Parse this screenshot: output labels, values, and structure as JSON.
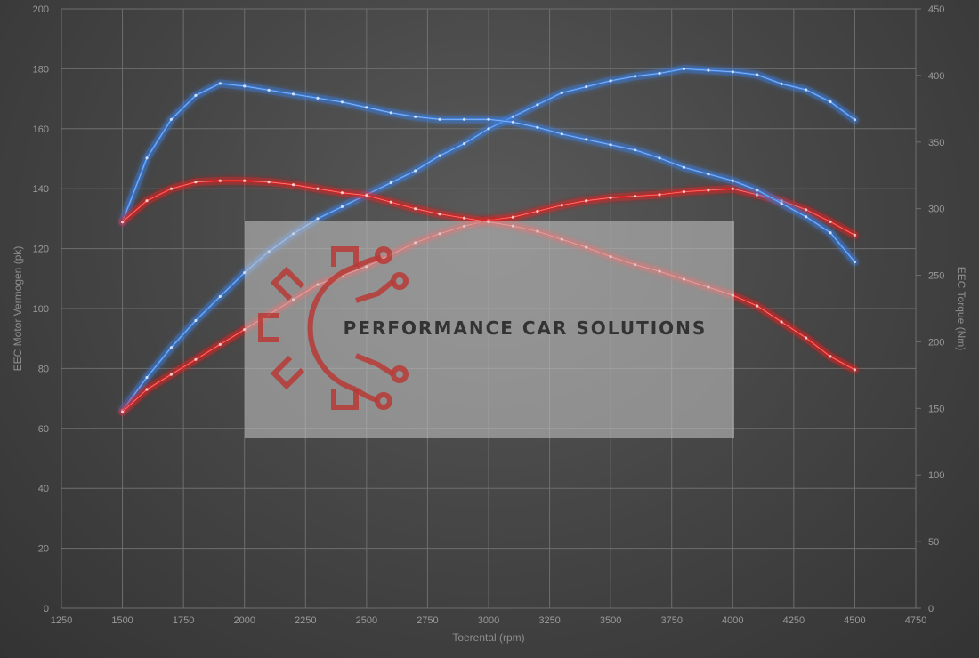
{
  "chart_data": {
    "type": "line",
    "xlabel": "Toerental (rpm)",
    "ylabel_left": "EEC Motor Vermogen (pk)",
    "ylabel_right": "EEC Torque (Nm)",
    "xlim": [
      1250,
      4750
    ],
    "ylim_left": [
      0,
      200
    ],
    "ylim_right": [
      0,
      450
    ],
    "x_ticks": [
      "1250",
      "1500",
      "1750",
      "2000",
      "2250",
      "2500",
      "2750",
      "3000",
      "3250",
      "3500",
      "3750",
      "4000",
      "4250",
      "4500",
      "4750"
    ],
    "y_ticks_left": [
      "0",
      "20",
      "40",
      "60",
      "80",
      "100",
      "120",
      "140",
      "160",
      "180",
      "200"
    ],
    "y_ticks_right": [
      "0",
      "50",
      "100",
      "150",
      "200",
      "250",
      "300",
      "350",
      "400",
      "450"
    ],
    "grid": true,
    "series": [
      {
        "axis": "left",
        "color": "#3a7fe0",
        "x": [
          1500,
          1600,
          1700,
          1800,
          1900,
          2000,
          2100,
          2200,
          2300,
          2400,
          2500,
          2600,
          2700,
          2800,
          2900,
          3000,
          3100,
          3200,
          3300,
          3400,
          3500,
          3600,
          3700,
          3800,
          3900,
          4000,
          4100,
          4200,
          4300,
          4400,
          4500
        ],
        "y": [
          66,
          77,
          87,
          96,
          104,
          112,
          119,
          125,
          130,
          134,
          138,
          142,
          146,
          151,
          155,
          160,
          164,
          168,
          172,
          174,
          176,
          177.5,
          178.5,
          180,
          179.5,
          179,
          178,
          175,
          173,
          169,
          163
        ]
      },
      {
        "axis": "left",
        "color": "#e02020",
        "x": [
          1500,
          1600,
          1700,
          1800,
          1900,
          2000,
          2100,
          2200,
          2300,
          2400,
          2500,
          2600,
          2700,
          2800,
          2900,
          3000,
          3100,
          3200,
          3300,
          3400,
          3500,
          3600,
          3700,
          3800,
          3900,
          4000,
          4100,
          4200,
          4300,
          4400,
          4500
        ],
        "y": [
          65.5,
          73,
          78,
          83,
          88,
          93,
          98,
          103,
          108,
          111,
          114,
          118,
          122,
          125,
          127.5,
          129.5,
          130.5,
          132.5,
          134.5,
          136,
          137,
          137.5,
          138,
          139,
          139.5,
          140,
          138,
          136,
          133,
          129,
          124.5
        ]
      },
      {
        "axis": "right",
        "color": "#3a7fe0",
        "x": [
          1500,
          1600,
          1700,
          1800,
          1900,
          2000,
          2100,
          2200,
          2300,
          2400,
          2500,
          2600,
          2700,
          2800,
          2900,
          3000,
          3100,
          3200,
          3300,
          3400,
          3500,
          3600,
          3700,
          3800,
          3900,
          4000,
          4100,
          4200,
          4300,
          4400,
          4500
        ],
        "y": [
          290,
          338,
          367,
          385,
          394,
          392,
          389,
          386,
          383,
          380,
          376,
          372,
          369,
          367,
          367,
          367,
          365,
          361,
          356,
          352,
          348,
          344,
          338,
          331,
          326,
          321,
          314,
          304,
          294,
          282,
          260
        ]
      },
      {
        "axis": "right",
        "color": "#e02020",
        "x": [
          1500,
          1600,
          1700,
          1800,
          1900,
          2000,
          2100,
          2200,
          2300,
          2400,
          2500,
          2600,
          2700,
          2800,
          2900,
          3000,
          3100,
          3200,
          3300,
          3400,
          3500,
          3600,
          3700,
          3800,
          3900,
          4000,
          4100,
          4200,
          4300,
          4400,
          4500
        ],
        "y": [
          290,
          306,
          315,
          320,
          321,
          321,
          320,
          318,
          315,
          312,
          310,
          305,
          300,
          296,
          293,
          290,
          287,
          283,
          277,
          271,
          264,
          258,
          253,
          247,
          241,
          235,
          227,
          215,
          203,
          189,
          179
        ]
      }
    ]
  },
  "watermark": {
    "text": "PERFORMANCE CAR SOLUTIONS",
    "logo_icon": "gear-circuit-icon",
    "logo_color": "#b73a36"
  }
}
